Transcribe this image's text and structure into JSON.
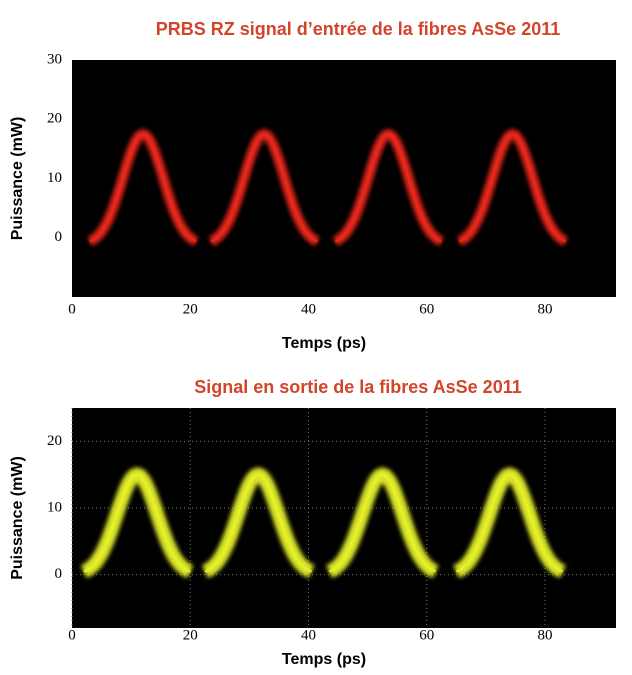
{
  "chart_data": [
    {
      "type": "eye",
      "title": "PRBS RZ signal d’entrée de la fibres AsSe 2011",
      "xlabel": "Temps (ps)",
      "ylabel": "Puissance (mW)",
      "xlim": [
        0,
        92
      ],
      "ylim": [
        -10,
        30
      ],
      "xticks": [
        0,
        20,
        40,
        60,
        80
      ],
      "yticks": [
        0,
        10,
        20,
        30
      ],
      "grid": false,
      "color": "#e8281a",
      "baseline_color": "#fff3a0",
      "baseline": -1.2,
      "peaks": {
        "x": [
          12,
          32.5,
          53.5,
          74.5
        ],
        "values": [
          17.5,
          17.5,
          17.5,
          17.5
        ]
      }
    },
    {
      "type": "eye",
      "title": "Signal en sortie de la fibres AsSe 2011",
      "xlabel": "Temps (ps)",
      "ylabel": "Puissance (mW)",
      "xlim": [
        0,
        92
      ],
      "ylim": [
        -8,
        25
      ],
      "xticks": [
        0,
        20,
        40,
        60,
        80
      ],
      "yticks": [
        0,
        10,
        20
      ],
      "grid": true,
      "color": "#e6f22a",
      "baseline_color": "#e6f22a",
      "baseline": 0,
      "peaks": {
        "x": [
          11,
          31.5,
          52.5,
          74
        ],
        "values": [
          15,
          15,
          15,
          15
        ]
      }
    }
  ]
}
